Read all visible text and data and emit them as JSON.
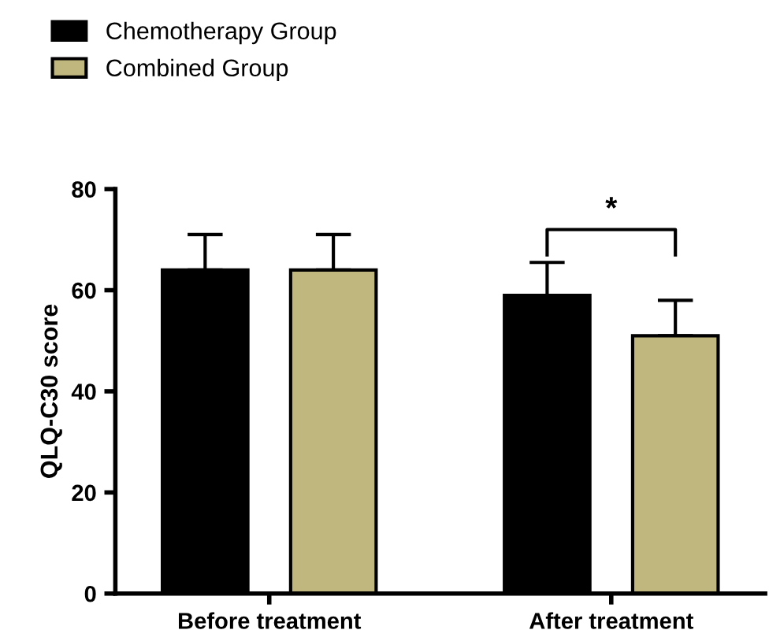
{
  "chart_data": {
    "type": "bar",
    "ylabel": "QLQ-C30 score",
    "categories": [
      "Before treatment",
      "After treatment"
    ],
    "series": [
      {
        "name": "Chemotherapy Group",
        "color": "#000000",
        "values": [
          64,
          59
        ],
        "errors": [
          [
            64,
            71
          ],
          [
            59,
            65.5
          ]
        ]
      },
      {
        "name": "Combined Group",
        "color": "#c0b77e",
        "values": [
          64,
          51
        ],
        "errors": [
          [
            64,
            71
          ],
          [
            51,
            58
          ]
        ]
      }
    ],
    "ylim": [
      0,
      80
    ],
    "yticks": [
      0,
      20,
      40,
      60,
      80
    ],
    "grid": false,
    "legend": "top left",
    "annotations": [
      "*"
    ]
  }
}
